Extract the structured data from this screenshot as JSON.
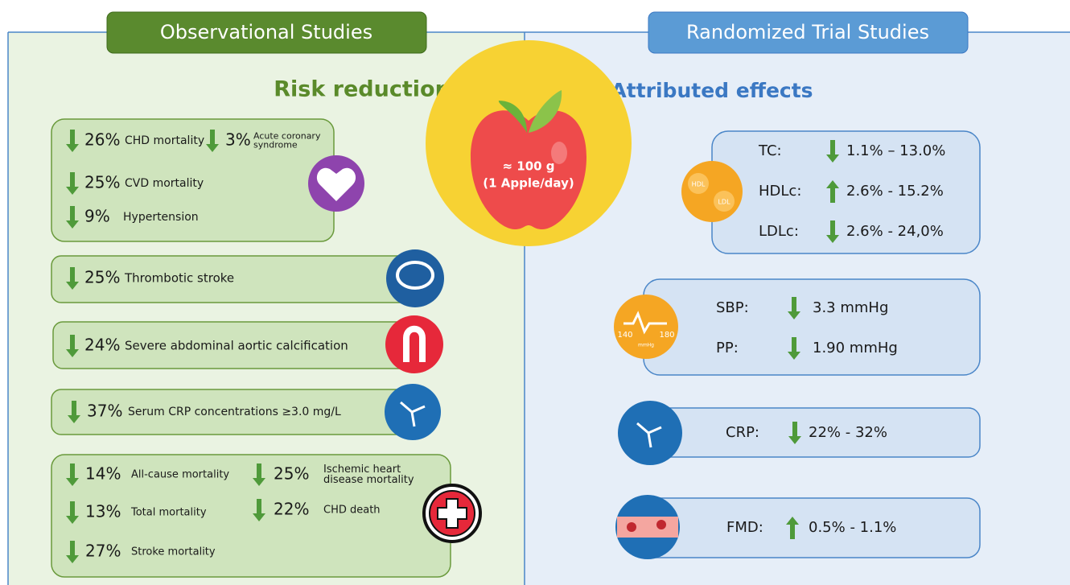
{
  "headers": {
    "left": "Observational Studies",
    "right": "Randomized Trial Studies"
  },
  "left_title": "Risk reduction",
  "right_title": "Attributed effects",
  "apple": {
    "line1": "≈ 100 g",
    "line2": "(1 Apple/day)"
  },
  "observational": [
    {
      "items": [
        {
          "direction": "down",
          "percent": "26%",
          "label": [
            "CHD mortality"
          ]
        },
        {
          "direction": "down",
          "percent": "3%",
          "label": [
            "Acute coronary",
            "syndrome"
          ]
        },
        {
          "direction": "down",
          "percent": "25%",
          "label": [
            "CVD mortality"
          ]
        },
        {
          "direction": "down",
          "percent": "9%",
          "label": [
            "Hypertension"
          ]
        }
      ]
    },
    {
      "items": [
        {
          "direction": "down",
          "percent": "25%",
          "label": [
            "Thrombotic stroke"
          ]
        }
      ]
    },
    {
      "items": [
        {
          "direction": "down",
          "percent": "24%",
          "label": [
            "Severe abdominal aortic calcification"
          ]
        }
      ]
    },
    {
      "items": [
        {
          "direction": "down",
          "percent": "37%",
          "label": [
            "Serum CRP concentrations ≥3.0 mg/L"
          ]
        }
      ]
    },
    {
      "items": [
        {
          "direction": "down",
          "percent": "14%",
          "label": [
            "All-cause mortality"
          ]
        },
        {
          "direction": "down",
          "percent": "25%",
          "label": [
            "Ischemic heart",
            "disease mortality"
          ]
        },
        {
          "direction": "down",
          "percent": "13%",
          "label": [
            "Total mortality"
          ]
        },
        {
          "direction": "down",
          "percent": "22%",
          "label": [
            "CHD death"
          ]
        },
        {
          "direction": "down",
          "percent": "27%",
          "label": [
            "Stroke mortality"
          ]
        }
      ]
    }
  ],
  "randomized": [
    {
      "items": [
        {
          "label": "TC:",
          "direction": "down",
          "range": "1.1% – 13.0%"
        },
        {
          "label": "HDLc:",
          "direction": "up",
          "range": "2.6% - 15.2%"
        },
        {
          "label": "LDLc:",
          "direction": "down",
          "range": "2.6% - 24,0%"
        }
      ]
    },
    {
      "items": [
        {
          "label": "SBP:",
          "direction": "down",
          "range": "3.3 mmHg"
        },
        {
          "label": "PP:",
          "direction": "down",
          "range": "1.90 mmHg"
        }
      ]
    },
    {
      "items": [
        {
          "label": "CRP:",
          "direction": "down",
          "range": "22% - 32%"
        }
      ]
    },
    {
      "items": [
        {
          "label": "FMD:",
          "direction": "up",
          "range": "0.5% - 1.1%"
        }
      ]
    }
  ],
  "icons": {
    "hdl": "HDL",
    "ldl": "LDL",
    "bp_low": "140",
    "bp_high": "180",
    "bp_unit": "mmHg"
  }
}
